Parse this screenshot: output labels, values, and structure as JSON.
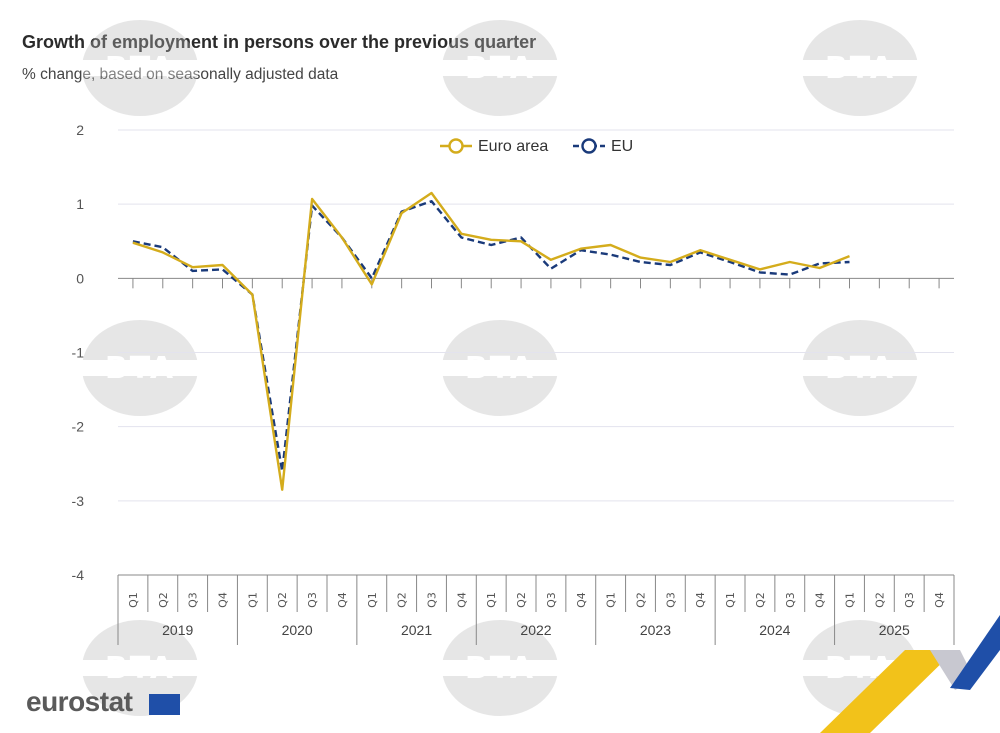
{
  "title": "Growth of employment in persons over the previous quarter",
  "subtitle": "% change, based on seasonally adjusted data",
  "watermark": "BTA",
  "logo": {
    "text": "eurostat",
    "flag_color": "#1f4fa8"
  },
  "colors": {
    "euro_area": "#d4ac1c",
    "eu": "#1a3a7a",
    "grid": "#e3e3ee",
    "axis": "#888888"
  },
  "chart_data": {
    "type": "line",
    "title": "Growth of employment in persons over the previous quarter",
    "subtitle": "% change, based on seasonally adjusted data",
    "ylim": [
      -4,
      2
    ],
    "yticks": [
      "2",
      "1",
      "0",
      "-1",
      "-2",
      "-3",
      "-4"
    ],
    "quarters": [
      "Q1",
      "Q2",
      "Q3",
      "Q4"
    ],
    "years": [
      "2019",
      "2020",
      "2021",
      "2022",
      "2023",
      "2024",
      "2025"
    ],
    "legend_position": "top-center",
    "grid": true,
    "series": [
      {
        "name": "Euro area",
        "style": "solid",
        "color": "#d4ac1c",
        "values": [
          0.48,
          0.35,
          0.15,
          0.18,
          -0.22,
          -2.85,
          1.07,
          0.55,
          -0.08,
          0.88,
          1.15,
          0.6,
          0.52,
          0.5,
          0.25,
          0.4,
          0.45,
          0.28,
          0.22,
          0.38,
          0.25,
          0.12,
          0.22,
          0.14,
          0.3
        ]
      },
      {
        "name": "EU",
        "style": "dashed",
        "color": "#1a3a7a",
        "values": [
          0.5,
          0.42,
          0.1,
          0.12,
          -0.22,
          -2.6,
          0.98,
          0.55,
          0.0,
          0.9,
          1.04,
          0.55,
          0.45,
          0.55,
          0.13,
          0.38,
          0.32,
          0.22,
          0.18,
          0.35,
          0.22,
          0.08,
          0.05,
          0.2,
          0.22
        ]
      }
    ]
  }
}
